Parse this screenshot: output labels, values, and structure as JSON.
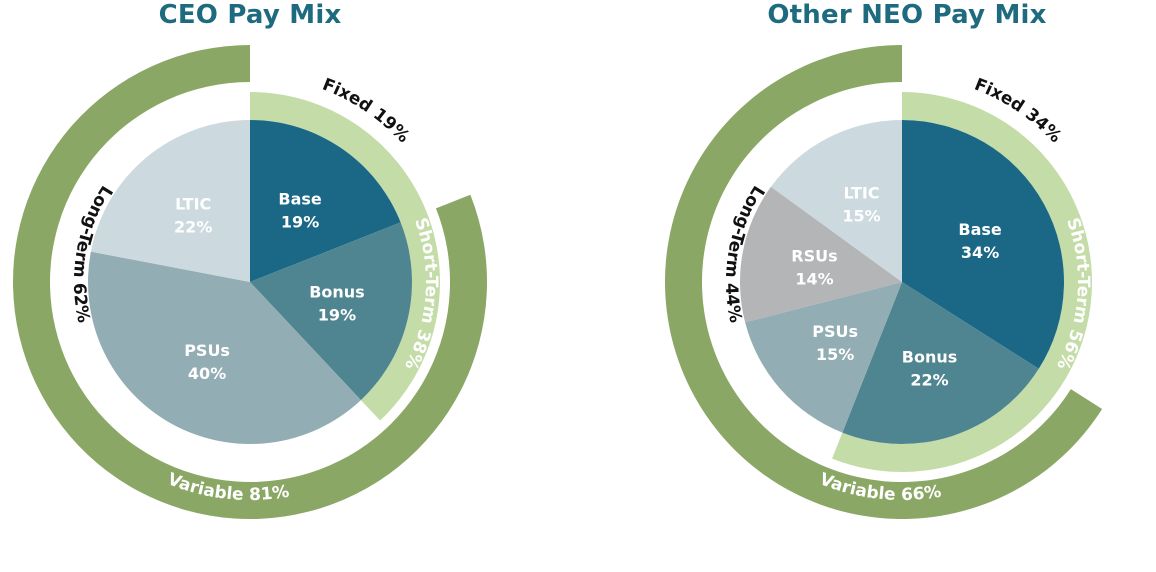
{
  "colors": {
    "title": "#1e6b80",
    "dark_green": "#8ba765",
    "light_green": "#c4dca7",
    "base": "#1b6886",
    "bonus": "#4f8590",
    "psus": "#93adb4",
    "rsus": "#b3b5b7",
    "ltic": "#ccd9df"
  },
  "chart_data": [
    {
      "type": "pie",
      "title": "CEO Pay Mix",
      "slices": [
        {
          "label": "Base",
          "value": 19,
          "display": "19%",
          "color_key": "base"
        },
        {
          "label": "Bonus",
          "value": 19,
          "display": "19%",
          "color_key": "bonus"
        },
        {
          "label": "PSUs",
          "value": 40,
          "display": "40%",
          "color_key": "psus"
        },
        {
          "label": "LTIC",
          "value": 22,
          "display": "22%",
          "color_key": "ltic"
        }
      ],
      "rings": [
        {
          "label": "Fixed 19%",
          "value": 19
        },
        {
          "label": "Short-Term 38%",
          "value": 38
        },
        {
          "label": "Long-Term 62%",
          "value": 62
        },
        {
          "label": "Variable 81%",
          "value": 81
        }
      ]
    },
    {
      "type": "pie",
      "title": "Other NEO Pay Mix",
      "slices": [
        {
          "label": "Base",
          "value": 34,
          "display": "34%",
          "color_key": "base"
        },
        {
          "label": "Bonus",
          "value": 22,
          "display": "22%",
          "color_key": "bonus"
        },
        {
          "label": "PSUs",
          "value": 15,
          "display": "15%",
          "color_key": "psus"
        },
        {
          "label": "RSUs",
          "value": 14,
          "display": "14%",
          "color_key": "rsus"
        },
        {
          "label": "LTIC",
          "value": 15,
          "display": "15%",
          "color_key": "ltic"
        }
      ],
      "rings": [
        {
          "label": "Fixed 34%",
          "value": 34
        },
        {
          "label": "Short-Term 56%",
          "value": 56
        },
        {
          "label": "Long-Term 44%",
          "value": 44
        },
        {
          "label": "Variable 66%",
          "value": 66
        }
      ]
    }
  ]
}
